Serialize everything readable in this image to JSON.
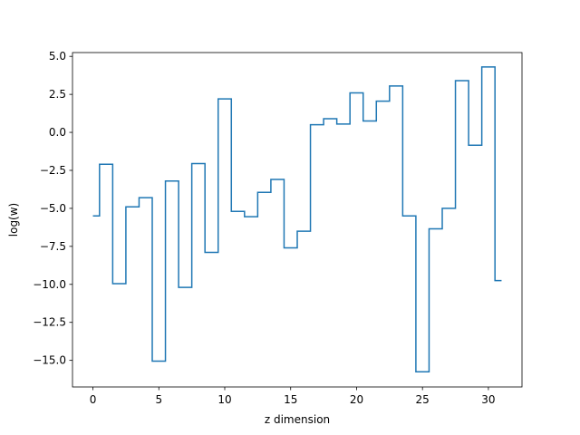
{
  "chart_data": {
    "type": "line",
    "drawstyle": "steps-mid",
    "title": "",
    "xlabel": "z dimension",
    "ylabel": "log(w)",
    "xlim": [
      -1.55,
      32.55
    ],
    "ylim": [
      -16.75,
      5.25
    ],
    "xticks": [
      0,
      5,
      10,
      15,
      20,
      25,
      30
    ],
    "yticks": [
      5.0,
      2.5,
      0.0,
      -2.5,
      -5.0,
      -7.5,
      -10.0,
      -12.5,
      -15.0
    ],
    "xtick_labels": [
      "0",
      "5",
      "10",
      "15",
      "20",
      "25",
      "30"
    ],
    "ytick_labels": [
      "5.0",
      "2.5",
      "0.0",
      "−2.5",
      "−5.0",
      "−7.5",
      "−10.0",
      "−12.5",
      "−15.0"
    ],
    "grid": false,
    "legend": "none",
    "line_color": "#1f77b4",
    "series": [
      {
        "x": [
          0,
          1,
          2,
          3,
          4,
          5,
          6,
          7,
          8,
          9,
          10,
          11,
          12,
          13,
          14,
          15,
          16,
          17,
          18,
          19,
          20,
          21,
          22,
          23,
          24,
          25,
          26,
          27,
          28,
          29,
          30,
          31
        ],
        "values": [
          -5.5,
          -2.1,
          -9.95,
          -4.9,
          -4.3,
          -15.05,
          -3.2,
          -10.2,
          -2.05,
          -7.9,
          2.2,
          -5.2,
          -5.55,
          -3.95,
          -3.1,
          -7.6,
          -6.5,
          0.5,
          0.9,
          0.55,
          2.6,
          0.75,
          2.05,
          3.05,
          -5.5,
          -15.75,
          -6.35,
          -5.0,
          3.4,
          -0.85,
          4.3,
          -9.75
        ]
      }
    ]
  }
}
